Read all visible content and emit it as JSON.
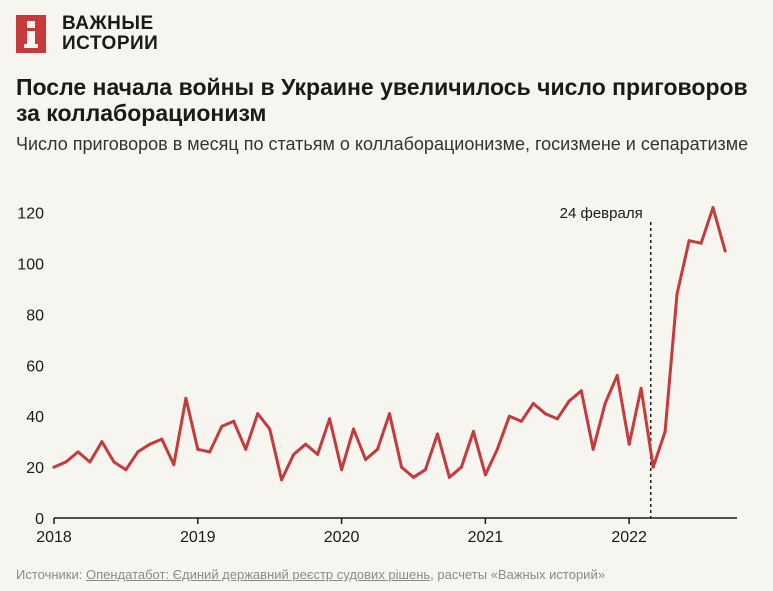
{
  "brand": {
    "line1": "ВАЖНЫЕ",
    "line2": "ИСТОРИИ"
  },
  "title": "После начала войны в Украине увеличилось число приговоров за коллаборационизм",
  "subtitle": "Число приговоров в месяц по статьям о коллаборационизме, госизмене и сепаратизме",
  "footer": {
    "prefix": "Источники: ",
    "link": "Опендатабот: Єдиний державний реєстр судових рішень",
    "suffix": ", расчеты «Важных историй»"
  },
  "colors": {
    "line": "#c63a3c",
    "text": "#1a1a1a",
    "axis": "#1a1a1a",
    "background": "#f7f5ef"
  },
  "chart_data": {
    "type": "line",
    "title": "После начала войны в Украине увеличилось число приговоров за коллаборационизм",
    "xlabel": "",
    "ylabel": "",
    "x_ticks": [
      "2018",
      "2019",
      "2020",
      "2021",
      "2022"
    ],
    "y_ticks": [
      0,
      20,
      40,
      60,
      80,
      100,
      120
    ],
    "ylim": [
      0,
      125
    ],
    "xlim": [
      2018.0,
      2022.75
    ],
    "grid": false,
    "annotation": {
      "label": "24 февраля",
      "x": 2022.15
    },
    "series": [
      {
        "name": "Приговоры в месяц",
        "x": [
          2018.0,
          2018.083,
          2018.167,
          2018.25,
          2018.333,
          2018.417,
          2018.5,
          2018.583,
          2018.667,
          2018.75,
          2018.833,
          2018.917,
          2019.0,
          2019.083,
          2019.167,
          2019.25,
          2019.333,
          2019.417,
          2019.5,
          2019.583,
          2019.667,
          2019.75,
          2019.833,
          2019.917,
          2020.0,
          2020.083,
          2020.167,
          2020.25,
          2020.333,
          2020.417,
          2020.5,
          2020.583,
          2020.667,
          2020.75,
          2020.833,
          2020.917,
          2021.0,
          2021.083,
          2021.167,
          2021.25,
          2021.333,
          2021.417,
          2021.5,
          2021.583,
          2021.667,
          2021.75,
          2021.833,
          2021.917,
          2022.0,
          2022.083,
          2022.167,
          2022.25,
          2022.333,
          2022.417,
          2022.5,
          2022.583,
          2022.667
        ],
        "values": [
          20,
          22,
          26,
          22,
          30,
          22,
          19,
          26,
          29,
          31,
          21,
          47,
          27,
          26,
          36,
          38,
          27,
          41,
          35,
          15,
          25,
          29,
          25,
          39,
          19,
          35,
          23,
          27,
          41,
          20,
          16,
          19,
          33,
          16,
          20,
          34,
          17,
          27,
          40,
          38,
          45,
          41,
          39,
          46,
          50,
          27,
          45,
          56,
          29,
          51,
          20,
          34,
          88,
          109,
          108,
          122,
          105
        ]
      }
    ]
  }
}
